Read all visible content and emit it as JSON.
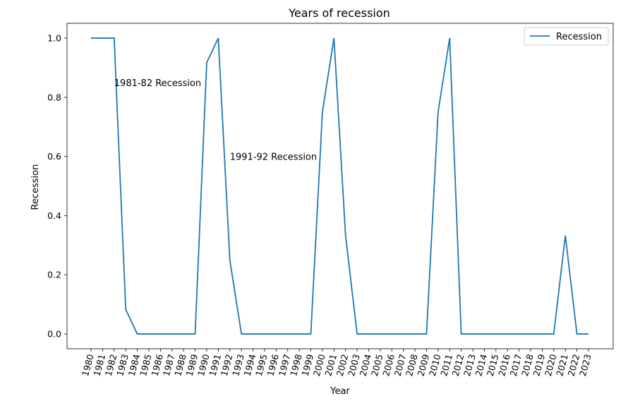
{
  "chart_data": {
    "type": "line",
    "title": "Years of recession",
    "xlabel": "Year",
    "ylabel": "Recession",
    "ylim": [
      -0.05,
      1.05
    ],
    "yticks": [
      "0.0",
      "0.2",
      "0.4",
      "0.6",
      "0.8",
      "1.0"
    ],
    "grid": false,
    "legend_position": "top-right",
    "categories": [
      "1980",
      "1981",
      "1982",
      "1983",
      "1984",
      "1985",
      "1986",
      "1987",
      "1988",
      "1989",
      "1990",
      "1991",
      "1992",
      "1993",
      "1994",
      "1995",
      "1996",
      "1997",
      "1998",
      "1999",
      "2000",
      "2001",
      "2002",
      "2003",
      "2004",
      "2005",
      "2006",
      "2007",
      "2008",
      "2009",
      "2010",
      "2011",
      "2012",
      "2013",
      "2014",
      "2015",
      "2016",
      "2017",
      "2018",
      "2019",
      "2020",
      "2021",
      "2022",
      "2023"
    ],
    "series": [
      {
        "name": "Recession",
        "color": "#1f77b4",
        "values": [
          1.0,
          1.0,
          1.0,
          0.083,
          0,
          0,
          0,
          0,
          0,
          0,
          0.917,
          1.0,
          0.25,
          0,
          0,
          0,
          0,
          0,
          0,
          0,
          0.75,
          1.0,
          0.333,
          0,
          0,
          0,
          0,
          0,
          0,
          0,
          0.75,
          1.0,
          0,
          0,
          0,
          0,
          0,
          0,
          0,
          0,
          0,
          0.333,
          0,
          0
        ]
      }
    ],
    "annotations": [
      {
        "text": "1981-82 Recession",
        "x": "1982",
        "y": 0.85
      },
      {
        "text": "1991-92 Recession",
        "x": "1992",
        "y": 0.6
      }
    ]
  }
}
